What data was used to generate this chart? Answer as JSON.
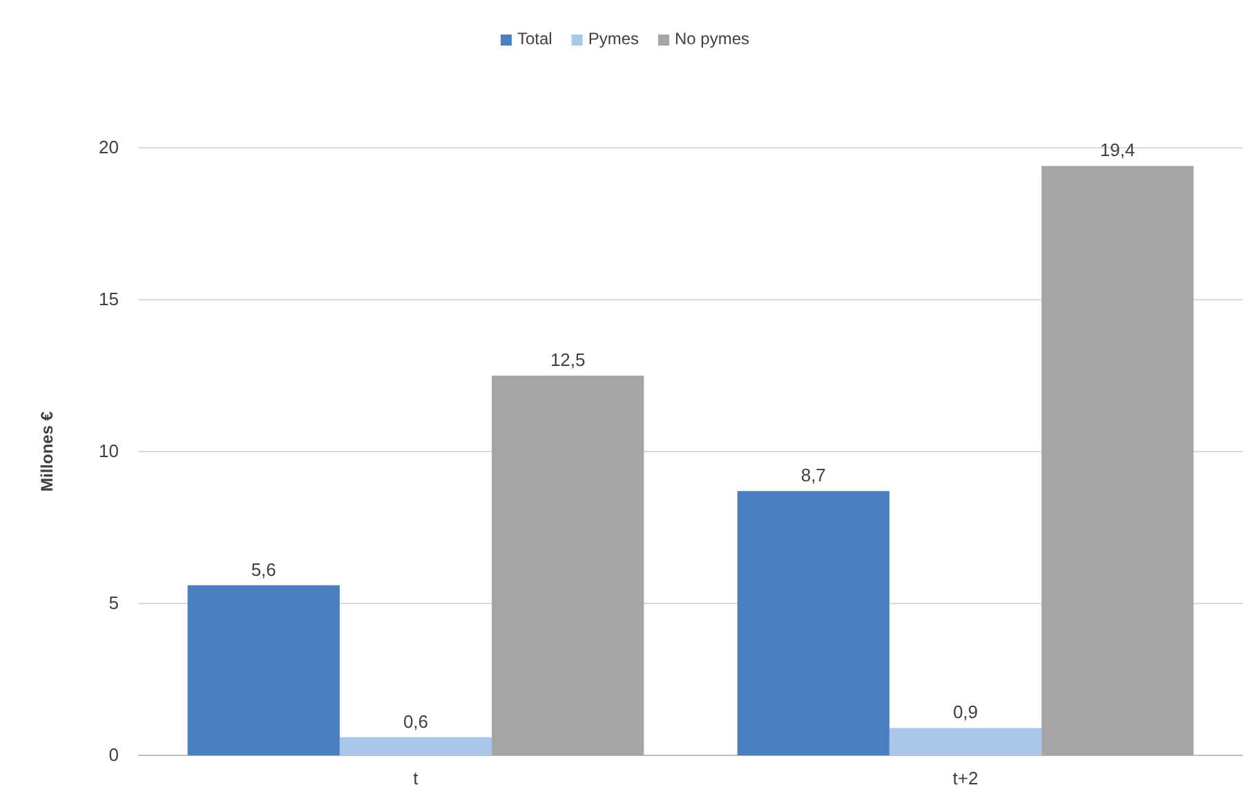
{
  "chart_data": {
    "type": "bar",
    "ylabel": "Millones €",
    "categories": [
      "t",
      "t+2"
    ],
    "series": [
      {
        "name": "Total",
        "color": "#4a7ebf",
        "values": [
          5.6,
          8.7
        ],
        "value_labels": [
          "5,6",
          "8,7"
        ]
      },
      {
        "name": "Pymes",
        "color": "#a9c5e8",
        "values": [
          0.6,
          0.9
        ],
        "value_labels": [
          "0,6",
          "0,9"
        ]
      },
      {
        "name": "No pymes",
        "color": "#a5a5a5",
        "values": [
          12.5,
          19.4
        ],
        "value_labels": [
          "12,5",
          "19,4"
        ]
      }
    ],
    "ylim": [
      0,
      20
    ],
    "yticks": [
      0,
      5,
      10,
      15,
      20
    ],
    "grid": "y",
    "legend": "top"
  }
}
